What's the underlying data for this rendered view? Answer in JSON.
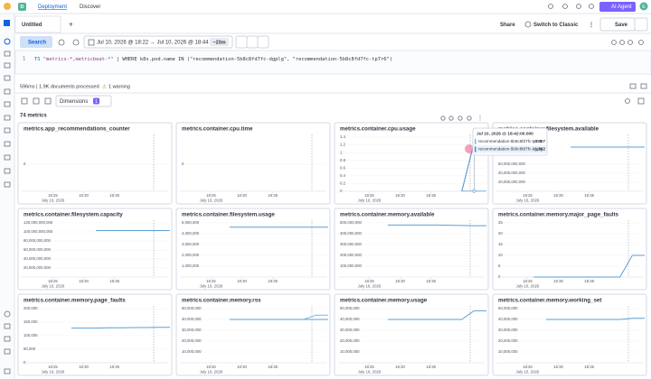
{
  "topbar": {
    "app_letter": "D",
    "breadcrumb": [
      "Deployment",
      "Discover"
    ],
    "ai_agent": "AI Agent",
    "user": "E"
  },
  "tabs": {
    "active": "Untitled",
    "add": "+",
    "share": "Share",
    "switch": "Switch to Classic",
    "save": "Save"
  },
  "query": {
    "search": "Search",
    "time_range": "Jul 10, 2026 @ 18:22 → Jul 10, 2026 @ 18:44",
    "duration": "~23m",
    "line_number": "1",
    "keyword": "TS",
    "source": "\"metrics-*,metricbeat-*\"",
    "rest": "| WHERE k8s.pod.name IN (\"recommendation-5b8c8fd7fc-dgplg\", \"recommendation-5b8c8fd7fc-tp7r6\")"
  },
  "status": {
    "summary": "596ms | 1.9K documents processed",
    "warning": "1 warning"
  },
  "toolbar": {
    "dimensions": "Dimensions",
    "dimensions_count": "1"
  },
  "metrics_count": "74 metrics",
  "tooltip": {
    "title": "Jul 10, 2026 @ 18:42:00.000"
  },
  "chart_data": [
    {
      "type": "line",
      "title": "metrics.app_recommendations_counter",
      "x": [
        "18:22",
        "18:24",
        "18:26",
        "18:28",
        "18:30",
        "18:32",
        "18:34",
        "18:36",
        "18:38",
        "18:40",
        "18:42",
        "18:44"
      ],
      "xticks": [
        "18:25",
        "18:30",
        "18:35"
      ],
      "x_sublabel": "July 10, 2026",
      "ylim": [
        -1,
        1
      ],
      "yticks": [
        0
      ],
      "series": []
    },
    {
      "type": "line",
      "title": "metrics.container.cpu.time",
      "x": [
        "18:22",
        "18:24",
        "18:26",
        "18:28",
        "18:30",
        "18:32",
        "18:34",
        "18:36",
        "18:38",
        "18:40",
        "18:42",
        "18:44"
      ],
      "xticks": [
        "18:25",
        "18:30",
        "18:35"
      ],
      "x_sublabel": "July 10, 2026",
      "ylim": [
        -1,
        1
      ],
      "yticks": [
        0
      ],
      "series": []
    },
    {
      "type": "line",
      "title": "metrics.container.cpu.usage",
      "x": [
        "18:22",
        "18:24",
        "18:26",
        "18:28",
        "18:30",
        "18:32",
        "18:34",
        "18:36",
        "18:38",
        "18:40",
        "18:42",
        "18:44"
      ],
      "xticks": [
        "18:25",
        "18:30",
        "18:35"
      ],
      "x_sublabel": "July 10, 2026",
      "ylim": [
        0,
        1.4
      ],
      "yticks": [
        0,
        0.2,
        0.4,
        0.6,
        0.8,
        1,
        1.2,
        1.4
      ],
      "series": [
        {
          "name": "recommendation-5b8c8fd7fc-tp7r6",
          "color": "#7fb5e0",
          "values": [
            null,
            null,
            null,
            null,
            null,
            null,
            null,
            null,
            null,
            0.007,
            0.007,
            0.007
          ]
        },
        {
          "name": "recommendation-5b8c8fd7fc-dgplg",
          "color": "#4a8fc9",
          "values": [
            null,
            null,
            null,
            null,
            null,
            null,
            null,
            null,
            null,
            0,
            1.262,
            1.262
          ]
        }
      ]
    },
    {
      "type": "line",
      "title": "metrics.container.filesystem.available",
      "x": [
        "18:22",
        "18:24",
        "18:26",
        "18:28",
        "18:30",
        "18:32",
        "18:34",
        "18:36",
        "18:38",
        "18:40",
        "18:42",
        "18:44"
      ],
      "xticks": [
        "18:25",
        "18:30",
        "18:35"
      ],
      "x_sublabel": "July 10, 2026",
      "ylim": [
        0,
        120000000000
      ],
      "yticks": [
        {
          "value": 20000000000,
          "label": "20,000,000,000"
        },
        {
          "value": 40000000000,
          "label": "40,000,000,000"
        },
        {
          "value": 60000000000,
          "label": "60,000,000,000"
        }
      ],
      "series": [
        {
          "color": "#5a9fd4",
          "values": [
            null,
            null,
            null,
            null,
            null,
            98000000000,
            98000000000,
            98000000000,
            98000000000,
            98000000000,
            98000000000,
            98000000000
          ]
        }
      ]
    },
    {
      "type": "line",
      "title": "metrics.container.filesystem.capacity",
      "x": [
        "18:22",
        "18:24",
        "18:26",
        "18:28",
        "18:30",
        "18:32",
        "18:34",
        "18:36",
        "18:38",
        "18:40",
        "18:42",
        "18:44"
      ],
      "xticks": [
        "18:25",
        "18:30",
        "18:35"
      ],
      "x_sublabel": "July 10, 2026",
      "ylim": [
        0,
        120000000000
      ],
      "yticks": [
        {
          "value": 20000000000,
          "label": "20,000,000,000"
        },
        {
          "value": 40000000000,
          "label": "40,000,000,000"
        },
        {
          "value": 60000000000,
          "label": "60,000,000,000"
        },
        {
          "value": 80000000000,
          "label": "80,000,000,000"
        },
        {
          "value": 100000000000,
          "label": "100,000,000,000"
        },
        {
          "value": 120000000000,
          "label": "120,000,000,000"
        }
      ],
      "series": [
        {
          "color": "#5a9fd4",
          "values": [
            null,
            null,
            null,
            null,
            null,
            103000000000,
            103000000000,
            103000000000,
            103000000000,
            103000000000,
            103000000000,
            103000000000
          ]
        }
      ]
    },
    {
      "type": "line",
      "title": "metrics.container.filesystem.usage",
      "x": [
        "18:22",
        "18:24",
        "18:26",
        "18:28",
        "18:30",
        "18:32",
        "18:34",
        "18:36",
        "18:38",
        "18:40",
        "18:42",
        "18:44"
      ],
      "xticks": [
        "18:25",
        "18:30",
        "18:35"
      ],
      "x_sublabel": "July 10, 2026",
      "ylim": [
        0,
        5000000
      ],
      "yticks": [
        {
          "value": 1000000,
          "label": "1,000,000"
        },
        {
          "value": 2000000,
          "label": "2,000,000"
        },
        {
          "value": 3000000,
          "label": "3,000,000"
        },
        {
          "value": 4000000,
          "label": "4,000,000"
        },
        {
          "value": 5000000,
          "label": "5,000,000"
        }
      ],
      "series": [
        {
          "color": "#5a9fd4",
          "values": [
            null,
            null,
            null,
            4600000,
            4600000,
            4600000,
            4600000,
            4600000,
            4600000,
            4600000,
            4600000,
            4600000
          ]
        }
      ]
    },
    {
      "type": "line",
      "title": "metrics.container.memory.available",
      "x": [
        "18:22",
        "18:24",
        "18:26",
        "18:28",
        "18:30",
        "18:32",
        "18:34",
        "18:36",
        "18:38",
        "18:40",
        "18:42",
        "18:44"
      ],
      "xticks": [
        "18:25",
        "18:30",
        "18:35"
      ],
      "x_sublabel": "July 10, 2026",
      "ylim": [
        0,
        500000000
      ],
      "yticks": [
        {
          "value": 100000000,
          "label": "100,000,000"
        },
        {
          "value": 200000000,
          "label": "200,000,000"
        },
        {
          "value": 300000000,
          "label": "300,000,000"
        },
        {
          "value": 400000000,
          "label": "400,000,000"
        },
        {
          "value": 500000000,
          "label": "500,000,000"
        }
      ],
      "series": [
        {
          "color": "#5a9fd4",
          "values": [
            null,
            null,
            null,
            480000000,
            480000000,
            480000000,
            480000000,
            480000000,
            478000000,
            476000000,
            474000000,
            474000000
          ]
        }
      ]
    },
    {
      "type": "line",
      "title": "metrics.container.memory.major_page_faults",
      "x": [
        "18:22",
        "18:24",
        "18:26",
        "18:28",
        "18:30",
        "18:32",
        "18:34",
        "18:36",
        "18:38",
        "18:40",
        "18:42",
        "18:44"
      ],
      "xticks": [
        "18:25",
        "18:30",
        "18:35"
      ],
      "x_sublabel": "July 10, 2026",
      "ylim": [
        0,
        25
      ],
      "yticks": [
        0,
        5,
        10,
        15,
        20,
        25
      ],
      "series": [
        {
          "color": "#5a9fd4",
          "values": [
            null,
            null,
            0,
            0,
            0,
            0,
            0,
            0,
            0,
            0,
            10,
            10
          ]
        }
      ]
    },
    {
      "type": "line",
      "title": "metrics.container.memory.page_faults",
      "x": [
        "18:22",
        "18:24",
        "18:26",
        "18:28",
        "18:30",
        "18:32",
        "18:34",
        "18:36",
        "18:38",
        "18:40",
        "18:42",
        "18:44"
      ],
      "xticks": [
        "18:25",
        "18:30",
        "18:35"
      ],
      "x_sublabel": "July 10, 2026",
      "ylim": [
        0,
        200000
      ],
      "yticks": [
        0,
        {
          "value": 50000,
          "label": "50,000"
        },
        {
          "value": 100000,
          "label": "100,000"
        },
        {
          "value": 150000,
          "label": "150,000"
        },
        {
          "value": 200000,
          "label": "200,000"
        }
      ],
      "series": [
        {
          "color": "#5a9fd4",
          "values": [
            null,
            null,
            null,
            128000,
            128000,
            128000,
            129000,
            129000,
            130000,
            130000,
            131000,
            131000
          ]
        }
      ]
    },
    {
      "type": "line",
      "title": "metrics.container.memory.rss",
      "x": [
        "18:22",
        "18:24",
        "18:26",
        "18:28",
        "18:30",
        "18:32",
        "18:34",
        "18:36",
        "18:38",
        "18:40",
        "18:42",
        "18:44"
      ],
      "xticks": [
        "18:25",
        "18:30",
        "18:35"
      ],
      "x_sublabel": "July 10, 2026",
      "ylim": [
        0,
        50000000
      ],
      "yticks": [
        {
          "value": 10000000,
          "label": "10,000,000"
        },
        {
          "value": 20000000,
          "label": "20,000,000"
        },
        {
          "value": 30000000,
          "label": "30,000,000"
        },
        {
          "value": 40000000,
          "label": "40,000,000"
        },
        {
          "value": 50000000,
          "label": "50,000,000"
        }
      ],
      "series": [
        {
          "color": "#5a9fd4",
          "values": [
            null,
            null,
            null,
            40000000,
            40000000,
            40000000,
            40000000,
            40000000,
            40000000,
            40000000,
            40000000,
            40000000
          ]
        },
        {
          "color": "#7fb5e0",
          "values": [
            null,
            null,
            null,
            null,
            null,
            null,
            null,
            null,
            null,
            40000000,
            44000000,
            44000000
          ]
        }
      ]
    },
    {
      "type": "line",
      "title": "metrics.container.memory.usage",
      "x": [
        "18:22",
        "18:24",
        "18:26",
        "18:28",
        "18:30",
        "18:32",
        "18:34",
        "18:36",
        "18:38",
        "18:40",
        "18:42",
        "18:44"
      ],
      "xticks": [
        "18:25",
        "18:30",
        "18:35"
      ],
      "x_sublabel": "July 10, 2026",
      "ylim": [
        0,
        50000000
      ],
      "yticks": [
        {
          "value": 10000000,
          "label": "10,000,000"
        },
        {
          "value": 20000000,
          "label": "20,000,000"
        },
        {
          "value": 30000000,
          "label": "30,000,000"
        },
        {
          "value": 40000000,
          "label": "40,000,000"
        },
        {
          "value": 50000000,
          "label": "50,000,000"
        }
      ],
      "series": [
        {
          "color": "#5a9fd4",
          "values": [
            null,
            null,
            null,
            40000000,
            40000000,
            40000000,
            40000000,
            40000000,
            40000000,
            40000000,
            48000000,
            48000000
          ]
        }
      ]
    },
    {
      "type": "line",
      "title": "metrics.container.memory.working_set",
      "x": [
        "18:22",
        "18:24",
        "18:26",
        "18:28",
        "18:30",
        "18:32",
        "18:34",
        "18:36",
        "18:38",
        "18:40",
        "18:42",
        "18:44"
      ],
      "xticks": [
        "18:25",
        "18:30",
        "18:35"
      ],
      "x_sublabel": "July 10, 2026",
      "ylim": [
        0,
        50000000
      ],
      "yticks": [
        {
          "value": 10000000,
          "label": "10,000,000"
        },
        {
          "value": 20000000,
          "label": "20,000,000"
        },
        {
          "value": 30000000,
          "label": "30,000,000"
        },
        {
          "value": 40000000,
          "label": "40,000,000"
        },
        {
          "value": 50000000,
          "label": "50,000,000"
        }
      ],
      "series": [
        {
          "color": "#5a9fd4",
          "values": [
            null,
            null,
            null,
            40000000,
            40000000,
            40000000,
            40000000,
            40000000,
            40000000,
            40000000,
            41000000,
            41000000
          ]
        }
      ]
    }
  ]
}
